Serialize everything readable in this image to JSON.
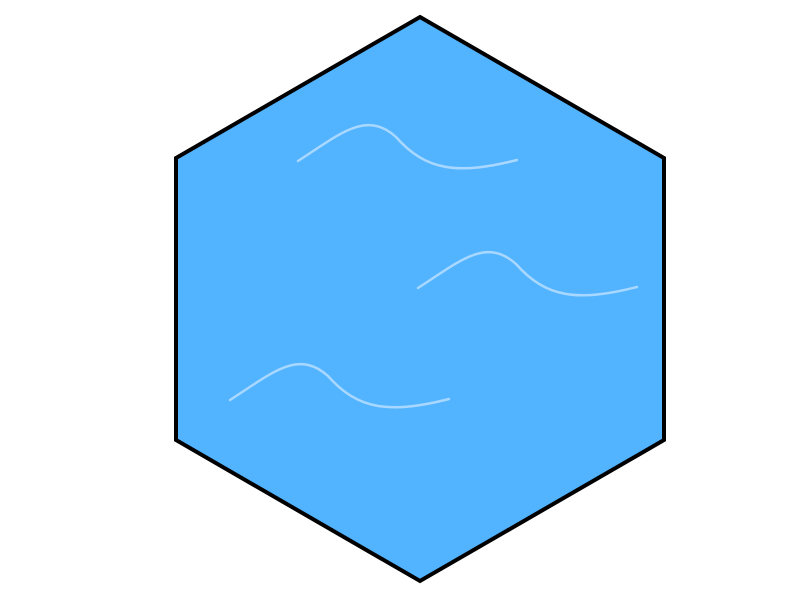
{
  "tile": {
    "type": "water",
    "fill_color": "#52B3FF",
    "stroke_color": "#000000",
    "wave_color": "#A8D8FF",
    "wave_count": 3,
    "icon": "water-tile-icon"
  }
}
